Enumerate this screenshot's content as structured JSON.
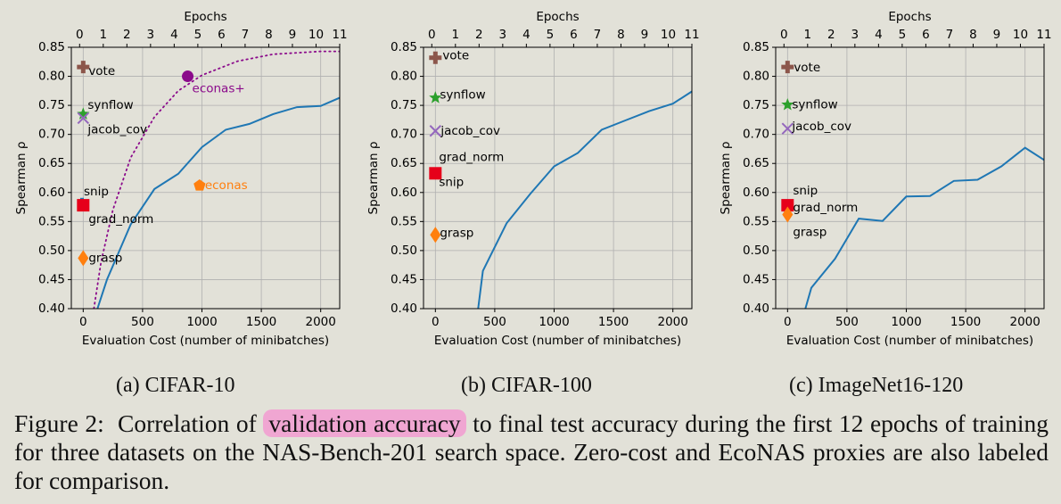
{
  "figure": {
    "caption_label": "Figure 2:",
    "caption_pre": "Correlation of",
    "caption_highlight": "validation accuracy",
    "caption_post": "to final test accuracy during the first 12 epochs of training for three datasets on the NAS-Bench-201 search space. Zero-cost and EcoNAS proxies are also labeled for comparison.",
    "highlight_color": "#f0a6d2"
  },
  "chart_data": [
    {
      "type": "line",
      "subcaption": "(a) CIFAR-10",
      "title": "Epochs",
      "xlabel": "Evaluation Cost (number of minibatches)",
      "ylabel": "Spearman ρ",
      "xlim": [
        -100,
        2160
      ],
      "ylim": [
        0.4,
        0.85
      ],
      "grid": true,
      "x_ticks": [
        0,
        500,
        1000,
        1500,
        2000
      ],
      "y_ticks": [
        "0.40",
        "0.45",
        "0.50",
        "0.55",
        "0.60",
        "0.65",
        "0.70",
        "0.75",
        "0.80",
        "0.85"
      ],
      "top_axis": {
        "ticks": [
          0,
          1,
          2,
          3,
          4,
          5,
          6,
          7,
          8,
          9,
          10,
          11
        ],
        "lim": [
          -0.35,
          11
        ]
      },
      "series": [
        {
          "color": "#1f77b4",
          "style": "solid",
          "x": [
            120,
            200,
            400,
            600,
            800,
            1000,
            1200,
            1400,
            1600,
            1800,
            2000,
            2160
          ],
          "y": [
            0.4,
            0.45,
            0.545,
            0.606,
            0.632,
            0.678,
            0.708,
            0.718,
            0.735,
            0.747,
            0.749,
            0.763
          ]
        },
        {
          "name": "econas+",
          "color": "#8b0a8b",
          "style": "dotted",
          "x": [
            90,
            150,
            250,
            400,
            600,
            800,
            1000,
            1300,
            1600,
            2000,
            2160
          ],
          "y": [
            0.4,
            0.48,
            0.57,
            0.66,
            0.73,
            0.775,
            0.802,
            0.826,
            0.838,
            0.843,
            0.843
          ]
        }
      ],
      "markers": [
        {
          "label": "vote",
          "x": 0,
          "y": 0.816,
          "shape": "plus",
          "color": "#8c564b"
        },
        {
          "label": "synflow",
          "x": 0,
          "y": 0.735,
          "shape": "star",
          "color": "#2ca02c"
        },
        {
          "label": "jacob_cov",
          "x": 0,
          "y": 0.728,
          "shape": "x",
          "color": "#9467bd"
        },
        {
          "label": "snip",
          "x": -10,
          "y": 0.58,
          "shape": "bar",
          "color": "#1f77b4"
        },
        {
          "label": "grad_norm",
          "x": 0,
          "y": 0.578,
          "shape": "square",
          "color": "#e6001a"
        },
        {
          "label": "grasp",
          "x": 0,
          "y": 0.487,
          "shape": "diamond",
          "color": "#ff7f0e"
        },
        {
          "label": "econas",
          "x": 980,
          "y": 0.612,
          "shape": "pentagon",
          "color": "#ff7f0e"
        },
        {
          "label": "econas+",
          "x": 880,
          "y": 0.8,
          "shape": "circle",
          "color": "#8b0a8b"
        }
      ]
    },
    {
      "type": "line",
      "subcaption": "(b) CIFAR-100",
      "title": "Epochs",
      "xlabel": "Evaluation Cost (number of minibatches)",
      "ylabel": "Spearman ρ",
      "xlim": [
        -100,
        2160
      ],
      "ylim": [
        0.4,
        0.85
      ],
      "grid": true,
      "x_ticks": [
        0,
        500,
        1000,
        1500,
        2000
      ],
      "y_ticks": [
        "0.40",
        "0.45",
        "0.50",
        "0.55",
        "0.60",
        "0.65",
        "0.70",
        "0.75",
        "0.80",
        "0.85"
      ],
      "top_axis": {
        "ticks": [
          0,
          1,
          2,
          3,
          4,
          5,
          6,
          7,
          8,
          9,
          10,
          11
        ],
        "lim": [
          -0.35,
          11
        ]
      },
      "series": [
        {
          "color": "#1f77b4",
          "style": "solid",
          "x": [
            360,
            400,
            600,
            800,
            1000,
            1200,
            1400,
            1600,
            1800,
            2000,
            2160
          ],
          "y": [
            0.4,
            0.465,
            0.547,
            0.598,
            0.645,
            0.668,
            0.708,
            0.724,
            0.74,
            0.753,
            0.774
          ]
        }
      ],
      "markers": [
        {
          "label": "vote",
          "x": 0,
          "y": 0.832,
          "shape": "plus",
          "color": "#8c564b"
        },
        {
          "label": "synflow",
          "x": 0,
          "y": 0.763,
          "shape": "star",
          "color": "#2ca02c"
        },
        {
          "label": "jacob_cov",
          "x": 0,
          "y": 0.706,
          "shape": "x",
          "color": "#9467bd"
        },
        {
          "label": "grad_norm",
          "x": 0,
          "y": 0.633,
          "shape": "square",
          "color": "#e6001a"
        },
        {
          "label": "snip",
          "x": 0,
          "y": 0.633,
          "shape": "none",
          "color": "#000000"
        },
        {
          "label": "grasp",
          "x": 0,
          "y": 0.527,
          "shape": "diamond",
          "color": "#ff7f0e"
        }
      ]
    },
    {
      "type": "line",
      "subcaption": "(c) ImageNet16-120",
      "title": "Epochs",
      "xlabel": "Evaluation Cost (number of minibatches)",
      "ylabel": "Spearman ρ",
      "xlim": [
        -100,
        2160
      ],
      "ylim": [
        0.4,
        0.85
      ],
      "grid": true,
      "x_ticks": [
        0,
        500,
        1000,
        1500,
        2000
      ],
      "y_ticks": [
        "0.40",
        "0.45",
        "0.50",
        "0.55",
        "0.60",
        "0.65",
        "0.70",
        "0.75",
        "0.80",
        "0.85"
      ],
      "top_axis": {
        "ticks": [
          0,
          1,
          2,
          3,
          4,
          5,
          6,
          7,
          8,
          9,
          10,
          11
        ],
        "lim": [
          -0.35,
          11
        ]
      },
      "series": [
        {
          "color": "#1f77b4",
          "style": "solid",
          "x": [
            150,
            200,
            400,
            600,
            800,
            1000,
            1200,
            1400,
            1600,
            1800,
            2000,
            2160
          ],
          "y": [
            0.4,
            0.436,
            0.486,
            0.555,
            0.551,
            0.593,
            0.594,
            0.62,
            0.622,
            0.645,
            0.677,
            0.656
          ]
        }
      ],
      "markers": [
        {
          "label": "vote",
          "x": 0,
          "y": 0.816,
          "shape": "plus",
          "color": "#8c564b"
        },
        {
          "label": "synflow",
          "x": 0,
          "y": 0.751,
          "shape": "star",
          "color": "#2ca02c"
        },
        {
          "label": "jacob_cov",
          "x": 0,
          "y": 0.71,
          "shape": "x",
          "color": "#9467bd"
        },
        {
          "label": "snip",
          "x": 0,
          "y": 0.578,
          "shape": "none",
          "color": "#000000"
        },
        {
          "label": "grad_norm",
          "x": 0,
          "y": 0.578,
          "shape": "square",
          "color": "#e6001a"
        },
        {
          "label": "grasp",
          "x": 0,
          "y": 0.562,
          "shape": "diamond",
          "color": "#ff7f0e"
        }
      ]
    }
  ]
}
